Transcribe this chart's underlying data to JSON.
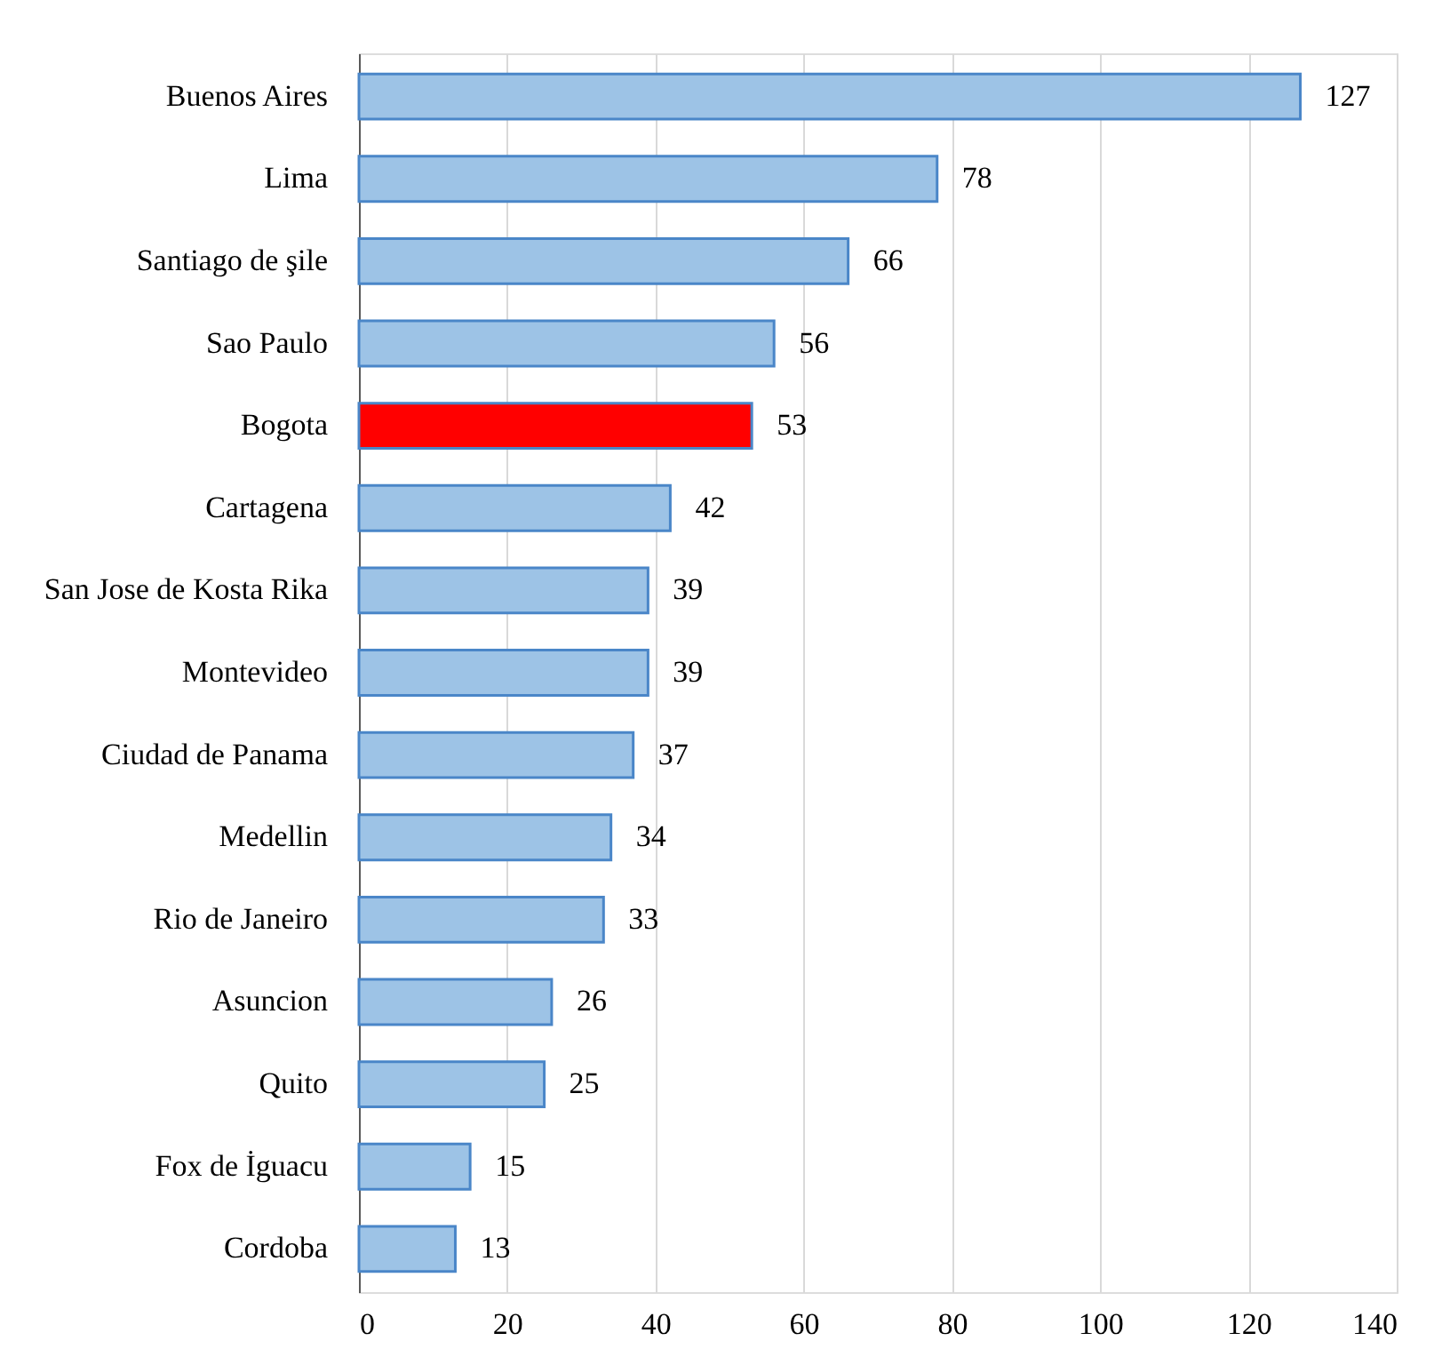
{
  "chart_data": {
    "type": "bar",
    "orientation": "horizontal",
    "categories": [
      "Buenos Aires",
      "Lima",
      "Santiago de şile",
      "Sao Paulo",
      "Bogota",
      "Cartagena",
      "San Jose  de Kosta Rika",
      "Montevideo",
      "Ciudad de Panama",
      "Medellin",
      "Rio de Janeiro",
      "Asuncion",
      "Quito",
      "Fox de İguacu",
      "Cordoba"
    ],
    "values": [
      127,
      78,
      66,
      56,
      53,
      42,
      39,
      39,
      37,
      34,
      33,
      26,
      25,
      15,
      13
    ],
    "colors": [
      "#9dc3e6",
      "#9dc3e6",
      "#9dc3e6",
      "#9dc3e6",
      "#ff0000",
      "#9dc3e6",
      "#9dc3e6",
      "#9dc3e6",
      "#9dc3e6",
      "#9dc3e6",
      "#9dc3e6",
      "#9dc3e6",
      "#9dc3e6",
      "#9dc3e6",
      "#9dc3e6"
    ],
    "xlim": [
      0,
      140
    ],
    "xticks": [
      0,
      20,
      40,
      60,
      80,
      100,
      120,
      140
    ],
    "grid": "x",
    "data_labels": true
  }
}
